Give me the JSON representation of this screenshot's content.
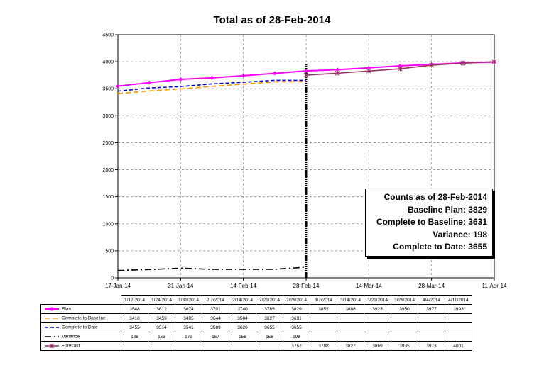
{
  "chart_data": {
    "type": "line",
    "title": "Total as of 28-Feb-2014",
    "x_tick_labels": [
      "17-Jan-14",
      "31-Jan-14",
      "14-Feb-14",
      "28-Feb-14",
      "14-Mar-14",
      "28-Mar-14",
      "11-Apr-14"
    ],
    "x_axis_start": "2014-01-17",
    "x_axis_end": "2014-04-11",
    "ylim": [
      0,
      4500
    ],
    "y_ticks": [
      0,
      500,
      1000,
      1500,
      2000,
      2500,
      3000,
      3500,
      4000,
      4500
    ],
    "grid": true,
    "status_date": "2014-02-28",
    "x_dates": [
      "2014-01-17",
      "2014-01-24",
      "2014-01-31",
      "2014-02-07",
      "2014-02-14",
      "2014-02-21",
      "2014-02-28",
      "2014-03-07",
      "2014-03-14",
      "2014-03-21",
      "2014-03-28",
      "2014-04-04",
      "2014-04-11"
    ],
    "categories": [
      "1/17/2014",
      "1/24/2014",
      "1/31/2014",
      "2/7/2014",
      "2/14/2014",
      "2/21/2014",
      "2/28/2014",
      "3/7/2014",
      "3/14/2014",
      "3/21/2014",
      "3/28/2014",
      "4/4/2014",
      "4/11/2014"
    ],
    "series": [
      {
        "name": "Plan",
        "color": "#ff00ff",
        "values": [
          3548,
          3612,
          3674,
          3701,
          3740,
          3785,
          3829,
          3852,
          3886,
          3923,
          3950,
          3977,
          3993
        ]
      },
      {
        "name": "Complete to Baseline",
        "color": "#ff9900",
        "values": [
          3410,
          3459,
          3495,
          3544,
          3584,
          3627,
          3631,
          null,
          null,
          null,
          null,
          null,
          null
        ]
      },
      {
        "name": "Complete to Date",
        "color": "#0000cc",
        "values": [
          3455,
          3514,
          3541,
          3589,
          3620,
          3655,
          3655,
          null,
          null,
          null,
          null,
          null,
          null
        ]
      },
      {
        "name": "Variance",
        "color": "#000000",
        "values": [
          136,
          153,
          179,
          157,
          156,
          158,
          198,
          null,
          null,
          null,
          null,
          null,
          null
        ]
      },
      {
        "name": "Forecast",
        "color": "#993366",
        "values": [
          null,
          null,
          null,
          null,
          null,
          null,
          3752,
          3788,
          3827,
          3869,
          3935,
          3973,
          4001
        ]
      }
    ]
  },
  "info_box": {
    "line1": "Counts as of 28-Feb-2014",
    "line2": "Baseline Plan: 3829",
    "line3": "Complete to Baseline: 3631",
    "line4": "Variance: 198",
    "line5": "Complete to Date: 3655"
  }
}
